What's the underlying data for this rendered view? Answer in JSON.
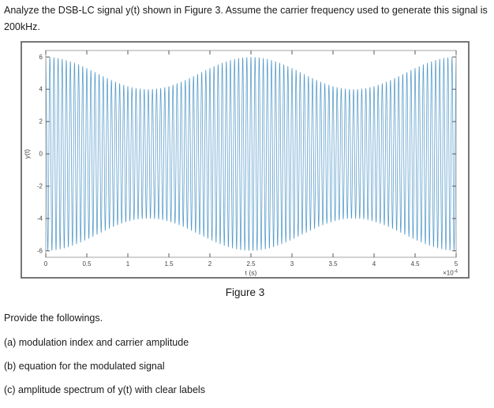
{
  "problem_statement": "Analyze the DSB-LC signal y(t) shown in Figure 3. Assume the carrier frequency used to generate this signal is 200kHz.",
  "figure": {
    "caption": "Figure 3"
  },
  "chart_data": {
    "type": "line",
    "title": "",
    "xlabel": "t (s)",
    "ylabel": "y(t)",
    "x_multiplier": {
      "base": "×10",
      "exponent": "-4"
    },
    "xlim_seconds": [
      0,
      0.0005
    ],
    "ylim": [
      -6.4,
      6.4
    ],
    "x_ticks_e4": [
      0,
      0.5,
      1,
      1.5,
      2,
      2.5,
      3,
      3.5,
      4,
      4.5,
      5
    ],
    "x_tick_labels": [
      "0",
      "0.5",
      "1",
      "1.5",
      "2",
      "2.5",
      "3",
      "3.5",
      "4",
      "4.5",
      "5"
    ],
    "y_ticks": [
      -6,
      -4,
      -2,
      0,
      2,
      4,
      6
    ],
    "y_tick_labels": [
      "-6",
      "-4",
      "-2",
      "0",
      "2",
      "4",
      "6"
    ],
    "grid": false,
    "legend": false,
    "line_color": "#4a93c6",
    "axis_box_color": "#a5a5a5",
    "tick_color": "#5a5a5a",
    "tick_label_color": "#454545",
    "series": [
      {
        "name": "DSB-LC modulated signal",
        "model": "am_dsb_lc",
        "carrier_amplitude": 5,
        "modulation_index": 0.2,
        "carrier_freq_hz": 200000,
        "message_freq_hz": 4000,
        "envelope_max": 6,
        "envelope_min": 4
      }
    ]
  },
  "questions": {
    "intro": "Provide the followings.",
    "items": [
      "(a) modulation index and carrier amplitude",
      "(b) equation for the modulated signal",
      "(c) amplitude spectrum of y(t) with clear labels"
    ]
  }
}
